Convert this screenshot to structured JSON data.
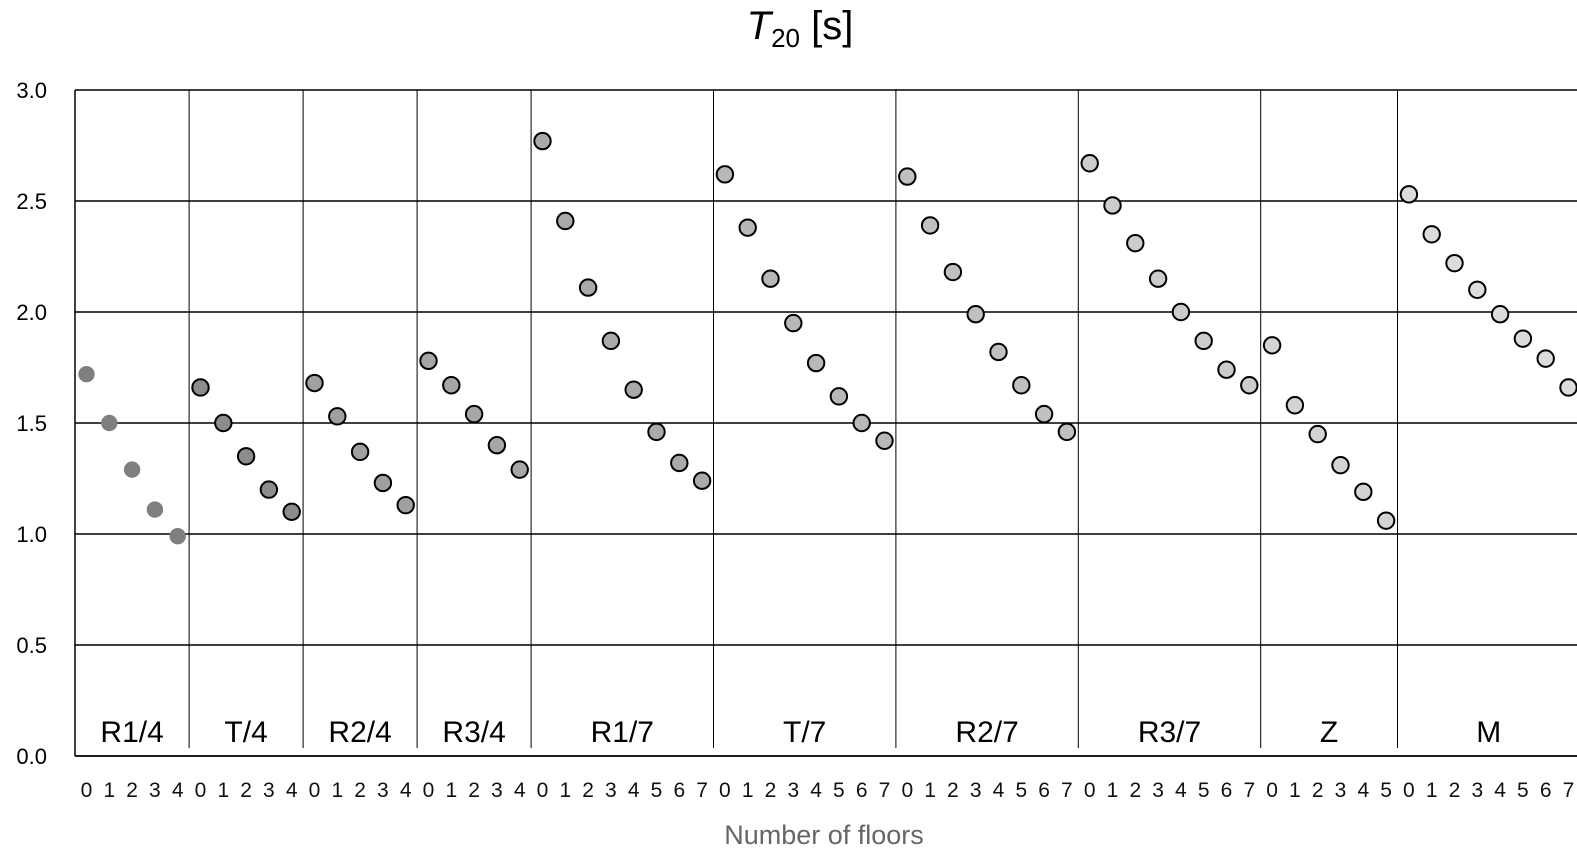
{
  "chart_data": {
    "type": "scatter",
    "title": {
      "symbol": "T",
      "subscript": "20",
      "unit": "[s]"
    },
    "xlabel": "Number of floors",
    "ylabel": "",
    "ylim": [
      0,
      3
    ],
    "yticks": [
      "0.0",
      "0.5",
      "1.0",
      "1.5",
      "2.0",
      "2.5",
      "3.0"
    ],
    "grid": "horizontal",
    "groups": [
      {
        "name": "R1/4",
        "fill": "#7f7f7f",
        "stroke": "none",
        "x": [
          "0",
          "1",
          "2",
          "3",
          "4"
        ],
        "values": [
          1.72,
          1.5,
          1.29,
          1.11,
          0.99
        ]
      },
      {
        "name": "T/4",
        "fill": "#8c8c8c",
        "stroke": "#000000",
        "x": [
          "0",
          "1",
          "2",
          "3",
          "4"
        ],
        "values": [
          1.66,
          1.5,
          1.35,
          1.2,
          1.1
        ]
      },
      {
        "name": "R2/4",
        "fill": "#a0a0a0",
        "stroke": "#000000",
        "x": [
          "0",
          "1",
          "2",
          "3",
          "4"
        ],
        "values": [
          1.68,
          1.53,
          1.37,
          1.23,
          1.13
        ]
      },
      {
        "name": "R3/4",
        "fill": "#a6a6a6",
        "stroke": "#000000",
        "x": [
          "0",
          "1",
          "2",
          "3",
          "4"
        ],
        "values": [
          1.78,
          1.67,
          1.54,
          1.4,
          1.29
        ]
      },
      {
        "name": "R1/7",
        "fill": "#aaaaaa",
        "stroke": "#000000",
        "x": [
          "0",
          "1",
          "2",
          "3",
          "4",
          "5",
          "6",
          "7"
        ],
        "values": [
          2.77,
          2.41,
          2.11,
          1.87,
          1.65,
          1.46,
          1.32,
          1.24
        ]
      },
      {
        "name": "T/7",
        "fill": "#b8b8b8",
        "stroke": "#000000",
        "x": [
          "0",
          "1",
          "2",
          "3",
          "4",
          "5",
          "6",
          "7"
        ],
        "values": [
          2.62,
          2.38,
          2.15,
          1.95,
          1.77,
          1.62,
          1.5,
          1.42
        ]
      },
      {
        "name": "R2/7",
        "fill": "#c0c0c0",
        "stroke": "#000000",
        "x": [
          "0",
          "1",
          "2",
          "3",
          "4",
          "5",
          "6",
          "7"
        ],
        "values": [
          2.61,
          2.39,
          2.18,
          1.99,
          1.82,
          1.67,
          1.54,
          1.46
        ]
      },
      {
        "name": "R3/7",
        "fill": "#cccccc",
        "stroke": "#000000",
        "x": [
          "0",
          "1",
          "2",
          "3",
          "4",
          "5",
          "6",
          "7"
        ],
        "values": [
          2.67,
          2.48,
          2.31,
          2.15,
          2.0,
          1.87,
          1.74,
          1.67
        ]
      },
      {
        "name": "Z",
        "fill": "#d3d3d3",
        "stroke": "#000000",
        "x": [
          "0",
          "1",
          "2",
          "3",
          "4",
          "5"
        ],
        "values": [
          1.85,
          1.58,
          1.45,
          1.31,
          1.19,
          1.06
        ]
      },
      {
        "name": "M",
        "fill": "#dcdcdc",
        "stroke": "#000000",
        "x": [
          "0",
          "1",
          "2",
          "3",
          "4",
          "5",
          "6",
          "7"
        ],
        "values": [
          2.53,
          2.35,
          2.22,
          2.1,
          1.99,
          1.88,
          1.79,
          1.66
        ]
      }
    ]
  }
}
